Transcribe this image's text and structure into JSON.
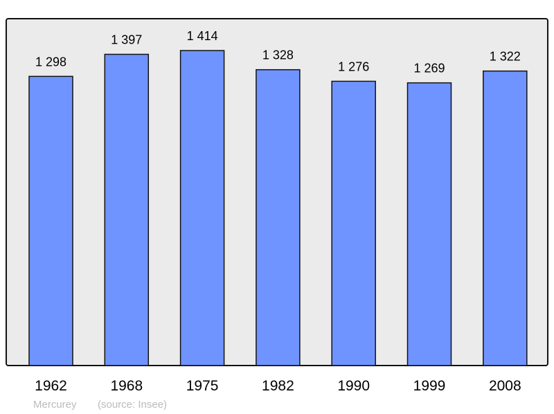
{
  "chart_data": {
    "type": "bar",
    "categories": [
      "1962",
      "1968",
      "1975",
      "1982",
      "1990",
      "1999",
      "2008"
    ],
    "values": [
      1298,
      1397,
      1414,
      1328,
      1276,
      1269,
      1322
    ],
    "value_labels": [
      "1 298",
      "1 397",
      "1 414",
      "1 328",
      "1 276",
      "1 269",
      "1 322"
    ],
    "title": "",
    "xlabel": "",
    "ylabel": "",
    "ylim": [
      0,
      1414
    ],
    "grid": false,
    "bar_color": "#7094ff",
    "background_color": "#ebebeb",
    "footer": {
      "place": "Mercurey",
      "source": "(source: Insee)"
    }
  }
}
